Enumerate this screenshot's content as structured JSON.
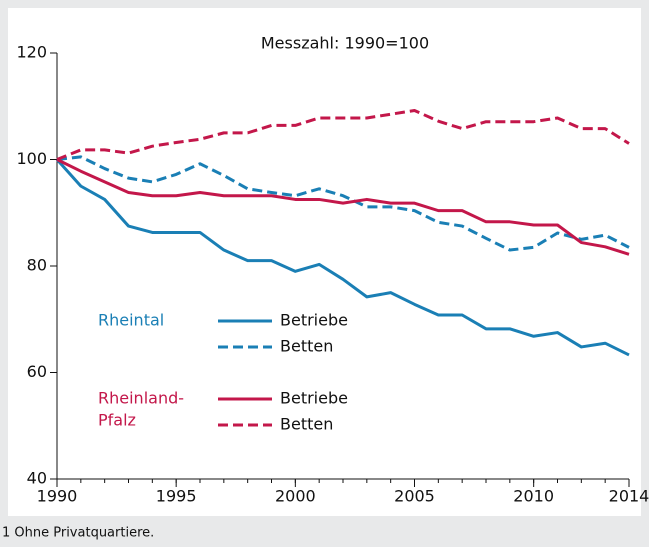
{
  "chart_data": {
    "type": "line",
    "title": "Messzahl: 1990=100",
    "footnote": "1 Ohne Privatquartiere.",
    "x": [
      1990,
      1991,
      1992,
      1993,
      1994,
      1995,
      1996,
      1997,
      1998,
      1999,
      2000,
      2001,
      2002,
      2003,
      2004,
      2005,
      2006,
      2007,
      2008,
      2009,
      2010,
      2011,
      2012,
      2013,
      2014
    ],
    "xlim": [
      1990,
      2014
    ],
    "xticks": [
      1990,
      1995,
      2000,
      2005,
      2010,
      2014
    ],
    "ylim": [
      40,
      120
    ],
    "yticks": [
      40,
      60,
      80,
      100,
      120
    ],
    "legend_groups": [
      {
        "lines": [
          "Rheintal"
        ],
        "color": "#1a7fb5"
      },
      {
        "lines": [
          "Rheinland-",
          "Pfalz"
        ],
        "color": "#c3174a"
      }
    ],
    "series": [
      {
        "name": "Betriebe",
        "group": 0,
        "color": "#1a7fb5",
        "dashed": false,
        "values": [
          100,
          95,
          92.5,
          87.5,
          86.3,
          86.3,
          86.3,
          83,
          81,
          81,
          79,
          80.3,
          77.5,
          74.2,
          75,
          72.8,
          70.8,
          70.8,
          68.2,
          68.2,
          66.8,
          67.5,
          64.8,
          65.5,
          63.3
        ]
      },
      {
        "name": "Betten",
        "group": 0,
        "color": "#1a7fb5",
        "dashed": true,
        "values": [
          100,
          100.5,
          98.3,
          96.5,
          95.8,
          97.2,
          99.2,
          97,
          94.5,
          93.8,
          93.2,
          94.5,
          93.2,
          91.1,
          91.1,
          90.4,
          88.2,
          87.5,
          85.2,
          83,
          83.5,
          86.2,
          85,
          85.8,
          83.5
        ]
      },
      {
        "name": "Betriebe",
        "group": 1,
        "color": "#c3174a",
        "dashed": false,
        "values": [
          100,
          97.8,
          95.8,
          93.8,
          93.2,
          93.2,
          93.8,
          93.2,
          93.2,
          93.2,
          92.5,
          92.5,
          91.8,
          92.5,
          91.8,
          91.8,
          90.4,
          90.4,
          88.3,
          88.3,
          87.7,
          87.7,
          84.4,
          83.6,
          82.2
        ]
      },
      {
        "name": "Betten",
        "group": 1,
        "color": "#c3174a",
        "dashed": true,
        "values": [
          100,
          101.8,
          101.8,
          101.2,
          102.5,
          103.2,
          103.8,
          105,
          105,
          106.4,
          106.4,
          107.8,
          107.8,
          107.8,
          108.5,
          109.2,
          107.2,
          105.8,
          107.1,
          107.1,
          107.1,
          107.8,
          105.8,
          105.8,
          103
        ]
      }
    ]
  }
}
